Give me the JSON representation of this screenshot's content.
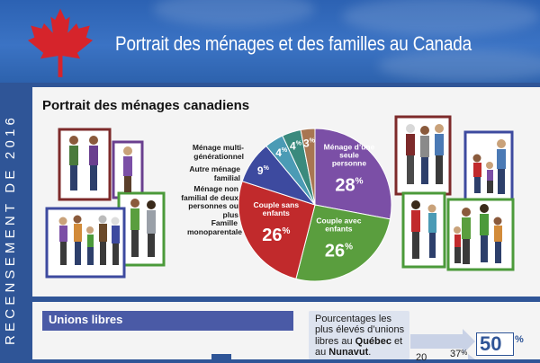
{
  "header": {
    "title": "Portrait des ménages et des familles au Canada",
    "accent": "#d6242b",
    "background": "#2f5597"
  },
  "sidebar": {
    "vertical_text": "RECENSEMENT DE 2016"
  },
  "section": {
    "title": "Portrait des ménages canadiens"
  },
  "icons": [
    "maple-leaf-icon"
  ],
  "chart_data": {
    "type": "pie",
    "title": "",
    "slices": [
      {
        "label": "Ménage d’une seule personne",
        "value": 28,
        "color": "#7b4fa6"
      },
      {
        "label": "Couple avec enfants",
        "value": 26,
        "color": "#5a9e3e"
      },
      {
        "label": "Couple sans enfants",
        "value": 26,
        "color": "#c12a2c"
      },
      {
        "label": "Famille monoparentale",
        "value": 9,
        "color": "#3d4a9f"
      },
      {
        "label": "Ménage non familial de deux personnes ou plus",
        "value": 4,
        "color": "#4b9bb5"
      },
      {
        "label": "Autre ménage familial",
        "value": 4,
        "color": "#3a8a7d"
      },
      {
        "label": "Ménage multi-générationnel",
        "value": 3,
        "color": "#a87652"
      }
    ],
    "unit": "%"
  },
  "ext_labels": {
    "multi": "Ménage multi-générationnel",
    "autre": "Autre ménage familial",
    "nonfam": "Ménage non familial de deux personnes ou plus",
    "mono": "Famille monoparentale"
  },
  "unions": {
    "title": "Unions libres",
    "text_1": "Pourcentages les plus élevés d’unions libres au ",
    "quebec": "Québec",
    "text_2": " et au ",
    "nunavut": "Nunavut",
    "text_3": ".",
    "pct_quebec": "37",
    "pct_quebec_prefix": "20",
    "pct_nunavut": "50",
    "percent_sign": "%"
  }
}
